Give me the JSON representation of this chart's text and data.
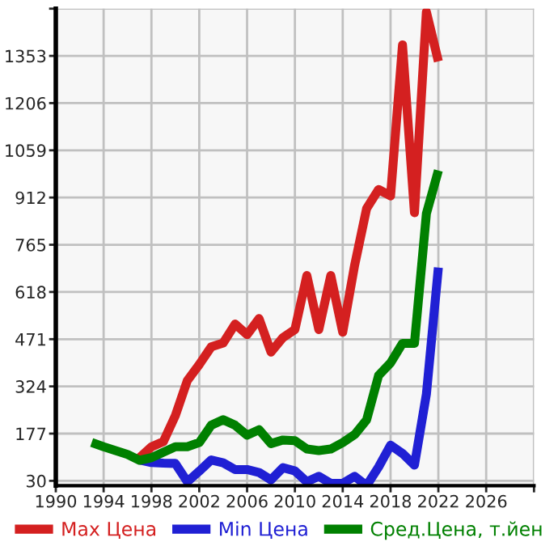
{
  "chart_data": {
    "type": "line",
    "x": [
      1993,
      1994,
      1995,
      1996,
      1997,
      1998,
      1999,
      2000,
      2001,
      2002,
      2003,
      2004,
      2005,
      2006,
      2007,
      2008,
      2009,
      2010,
      2011,
      2012,
      2013,
      2014,
      2015,
      2016,
      2017,
      2018,
      2019,
      2020,
      2021,
      2022
    ],
    "series": [
      {
        "name": "Max Цена",
        "color": "#d42020",
        "values": [
          null,
          null,
          null,
          null,
          102,
          136,
          152,
          233,
          342,
          392,
          447,
          459,
          518,
          485,
          535,
          431,
          476,
          501,
          669,
          501,
          669,
          493,
          702,
          878,
          937,
          917,
          1387,
          865,
          1490,
          1336
        ]
      },
      {
        "name": "Min Цена",
        "color": "#2020d4",
        "values": [
          null,
          null,
          null,
          null,
          95,
          87,
          85,
          84,
          27,
          60,
          95,
          86,
          65,
          65,
          56,
          33,
          71,
          61,
          27,
          44,
          22,
          22,
          44,
          15,
          73,
          141,
          115,
          79,
          300,
          694
        ]
      },
      {
        "name": "Сред.Цена, т.йен",
        "color": "#008000",
        "values": [
          149,
          136,
          124,
          112,
          94,
          102,
          119,
          136,
          136,
          149,
          203,
          220,
          203,
          172,
          189,
          146,
          157,
          155,
          129,
          124,
          129,
          149,
          174,
          220,
          358,
          397,
          458,
          458,
          862,
          996
        ]
      }
    ],
    "xlim": [
      1990,
      2030
    ],
    "xticks": [
      1990,
      1994,
      1998,
      2002,
      2006,
      2010,
      2014,
      2018,
      2022,
      2026,
      {
        "value": 2030,
        "label": null
      }
    ],
    "ylim": [
      15,
      1500
    ],
    "yticks": [
      30,
      177,
      324,
      471,
      618,
      765,
      912,
      1059,
      1206,
      1353,
      {
        "value": 1500,
        "label": null
      }
    ],
    "grid": true,
    "legend": "bottom",
    "marker": "none",
    "line_style": "solid"
  }
}
